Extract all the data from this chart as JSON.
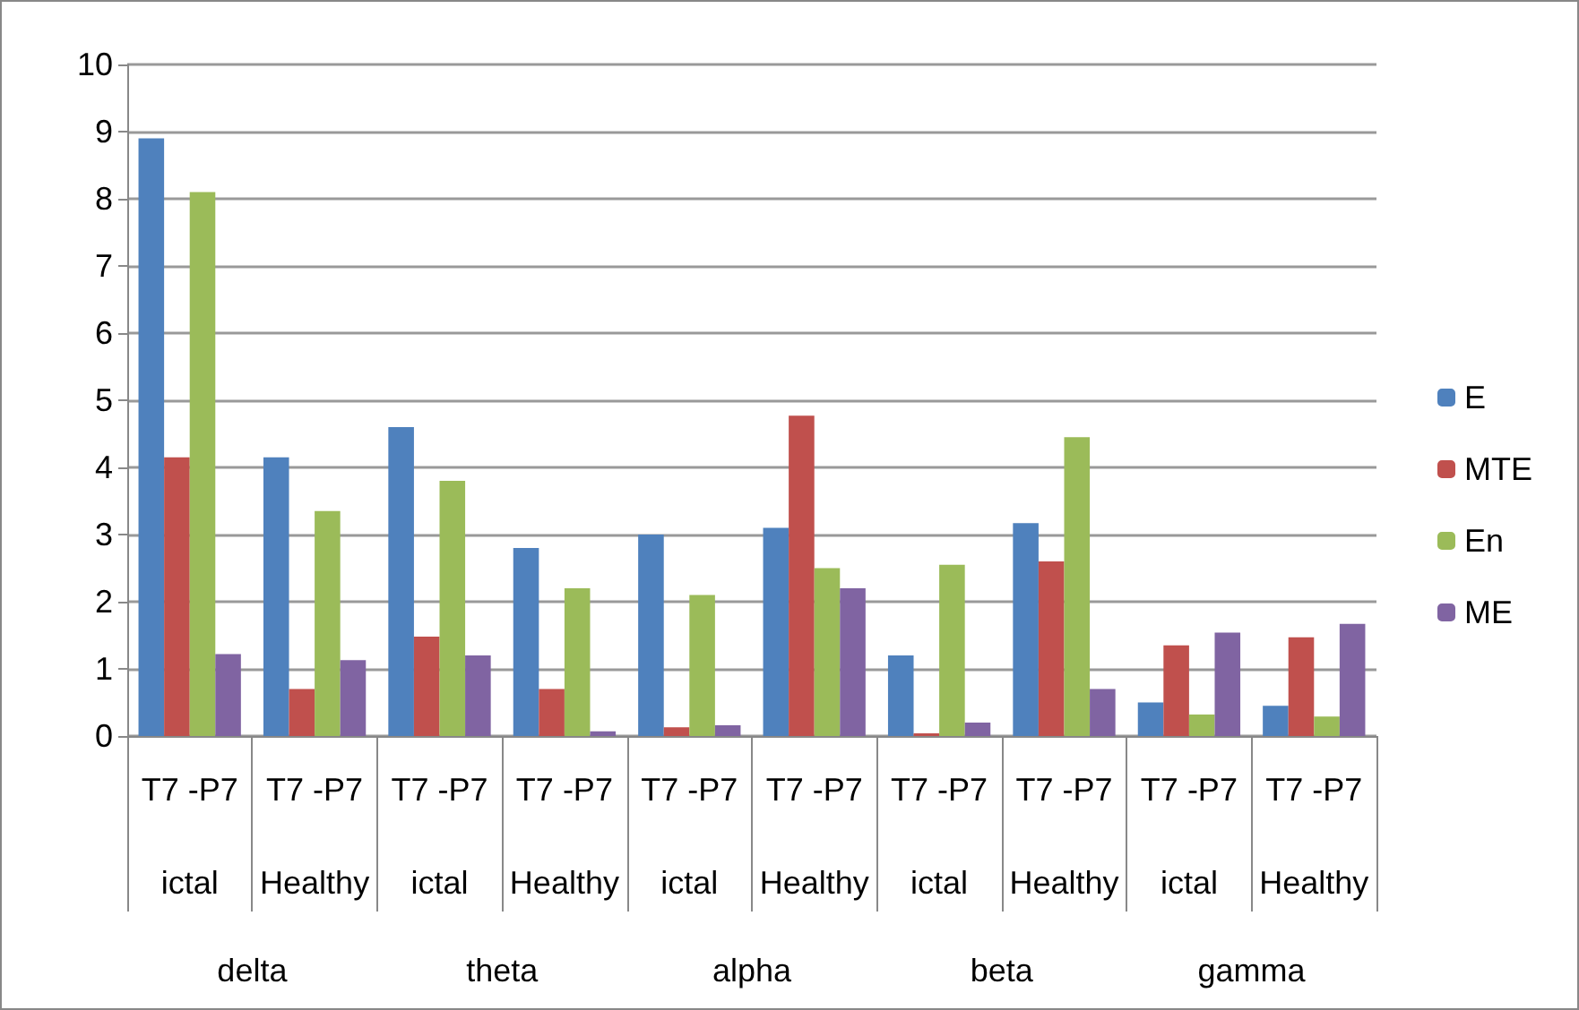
{
  "chart_data": {
    "type": "bar",
    "categories": [
      "T7 -P7\nictal",
      "T7 -P7\nHealthy",
      "T7 -P7\nictal",
      "T7 -P7\nHealthy",
      "T7 -P7\nictal",
      "T7 -P7\nHealthy",
      "T7 -P7\nictal",
      "T7 -P7\nHealthy",
      "T7 -P7\nictal",
      "T7 -P7\nHealthy"
    ],
    "annotations": [
      "delta",
      "theta",
      "alpha",
      "beta",
      "gamma"
    ],
    "series": [
      {
        "name": "E",
        "color": "#4f81bd",
        "values": [
          8.9,
          4.15,
          4.6,
          2.8,
          3.0,
          3.1,
          1.2,
          3.17,
          0.5,
          0.45
        ]
      },
      {
        "name": "MTE",
        "color": "#c0504d",
        "values": [
          4.15,
          0.7,
          1.48,
          0.7,
          0.13,
          4.77,
          0.04,
          2.6,
          1.35,
          1.47
        ]
      },
      {
        "name": "En",
        "color": "#9bbb59",
        "values": [
          8.1,
          3.35,
          3.8,
          2.2,
          2.1,
          2.5,
          2.55,
          4.45,
          0.32,
          0.29
        ]
      },
      {
        "name": "ME",
        "color": "#8064a2",
        "values": [
          1.22,
          1.13,
          1.2,
          0.07,
          0.16,
          2.2,
          0.2,
          0.7,
          1.54,
          1.67
        ]
      }
    ],
    "ylim": [
      0,
      10
    ],
    "yticks": [
      0,
      1,
      2,
      3,
      4,
      5,
      6,
      7,
      8,
      9,
      10
    ],
    "grid": "y",
    "legend": "right"
  }
}
